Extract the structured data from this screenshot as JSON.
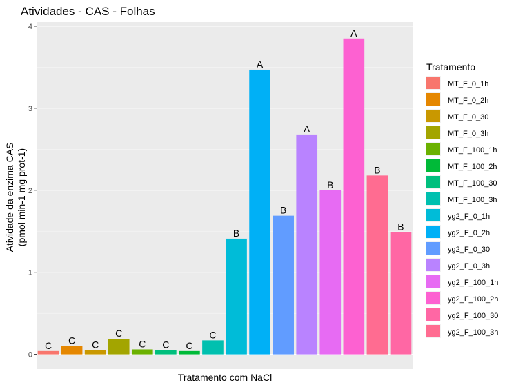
{
  "chart_data": {
    "type": "bar",
    "title": "Atividades - CAS - Folhas",
    "xlabel": "Tratamento com NaCl",
    "ylabel_line1": "Atividade da enzima CAS",
    "ylabel_line2": "(pmol min-1 mg prot-1)",
    "ylim": [
      -0.18,
      4.05
    ],
    "yticks": [
      0,
      1,
      2,
      3,
      4
    ],
    "ytick_labels": [
      "0",
      "1",
      "2",
      "3",
      "4"
    ],
    "grid": true,
    "legend_title": "Tratamento",
    "legend_position": "right",
    "categories": [
      "MT_F_0_1h",
      "MT_F_0_2h",
      "MT_F_0_30",
      "MT_F_0_3h",
      "MT_F_100_1h",
      "MT_F_100_2h",
      "MT_F_100_30",
      "MT_F_100_3h",
      "yg2_F_0_1h",
      "yg2_F_0_2h",
      "yg2_F_0_30",
      "yg2_F_0_3h",
      "yg2_F_100_1h",
      "yg2_F_100_2h",
      "yg2_F_100_30",
      "yg2_F_100_3h"
    ],
    "values": [
      0.04,
      0.1,
      0.05,
      0.19,
      0.06,
      0.04,
      0.05,
      0.17,
      1.41,
      3.47,
      1.69,
      2.68,
      2.0,
      3.85,
      1.49,
      2.18
    ],
    "letters": [
      "C",
      "C",
      "C",
      "C",
      "C",
      "C",
      "C",
      "C",
      "B",
      "A",
      "B",
      "A",
      "B",
      "A",
      "B",
      "B"
    ],
    "bar_order": [
      "MT_F_0_1h",
      "MT_F_0_2h",
      "MT_F_0_30",
      "MT_F_0_3h",
      "MT_F_100_1h",
      "MT_F_100_30",
      "MT_F_100_2h",
      "MT_F_100_3h",
      "yg2_F_0_1h",
      "yg2_F_0_2h",
      "yg2_F_0_30",
      "yg2_F_0_3h",
      "yg2_F_100_1h",
      "yg2_F_100_2h",
      "yg2_F_100_3h",
      "yg2_F_100_30"
    ],
    "colors": [
      "#F8766D",
      "#E58700",
      "#C99800",
      "#A3A500",
      "#6BB100",
      "#00BA38",
      "#00BF7D",
      "#00C0AF",
      "#00BCD8",
      "#00B0F6",
      "#619CFF",
      "#B983FF",
      "#E76BF3",
      "#FD61D1",
      "#FF67A4",
      "#FF6C91"
    ],
    "colors_note": "hex fill colours per category"
  }
}
